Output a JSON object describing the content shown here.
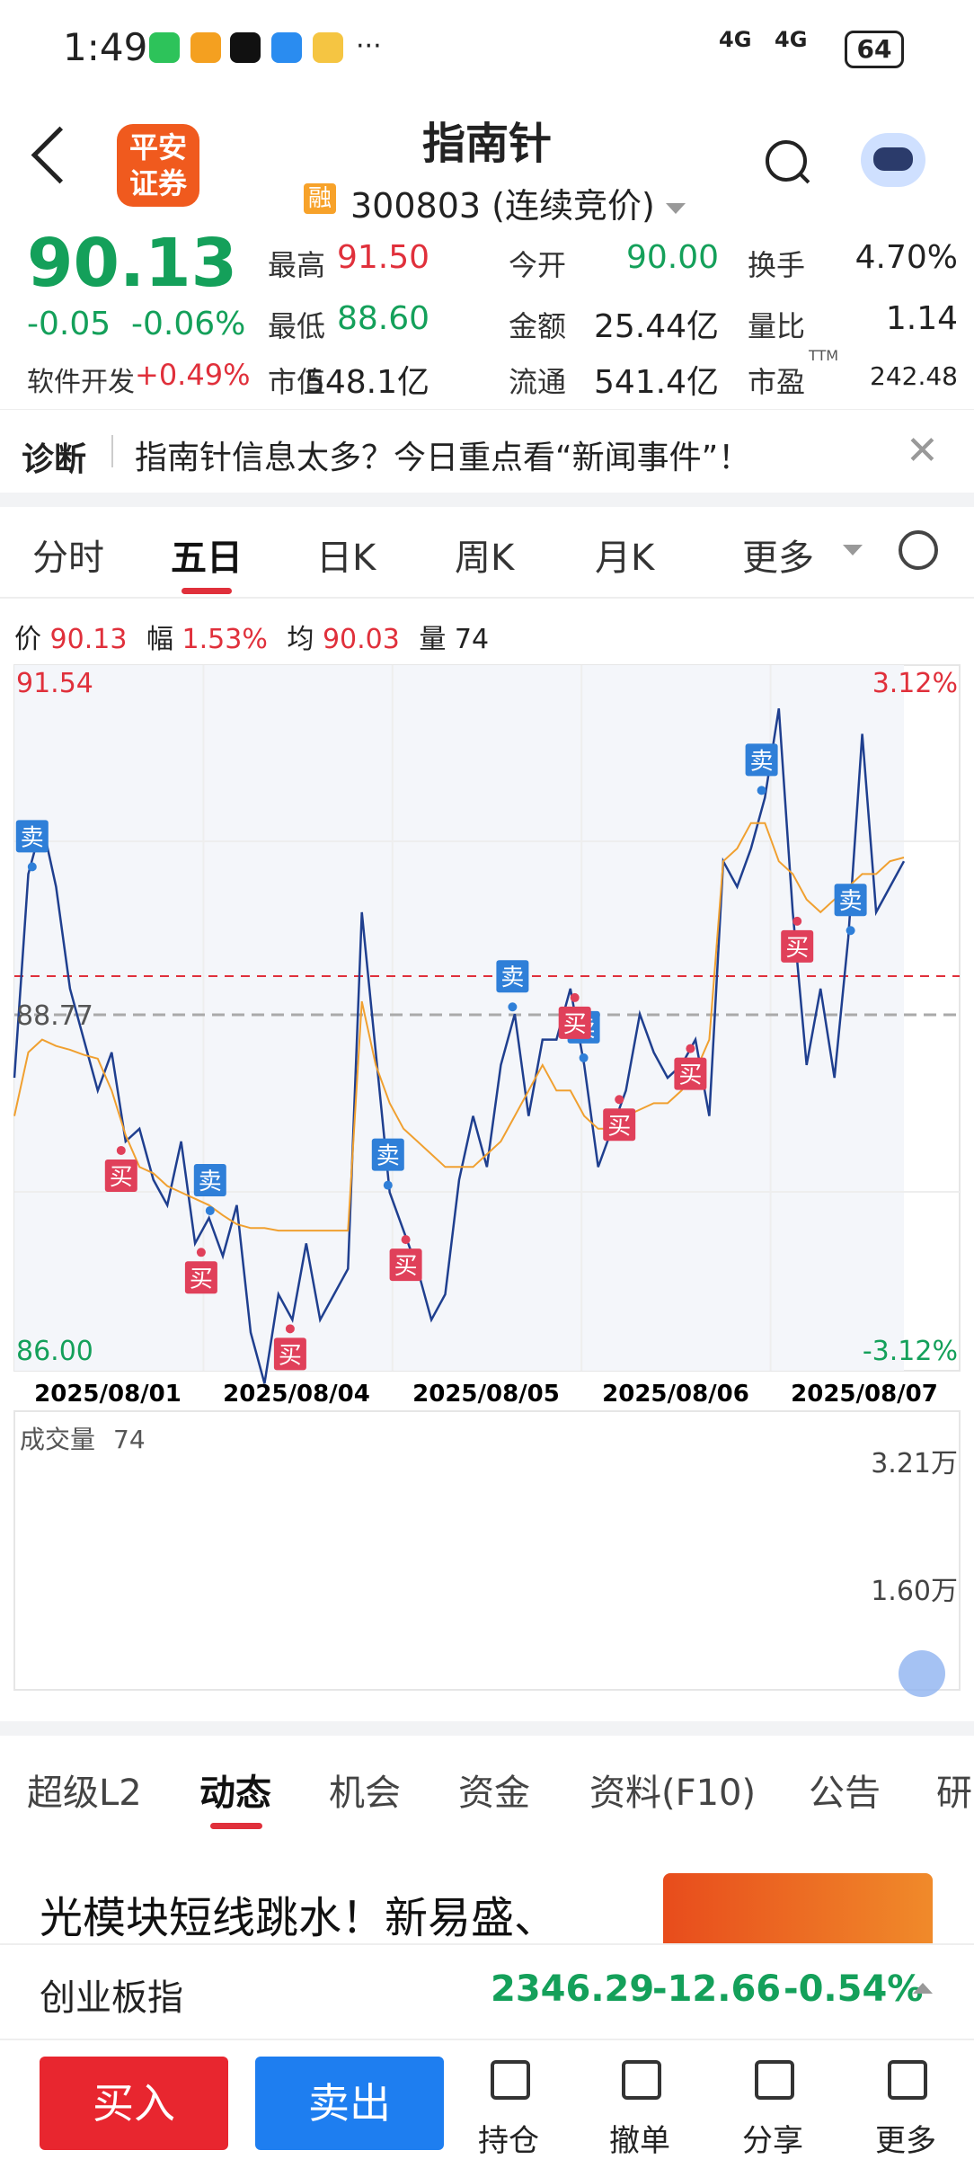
{
  "status_bar": {
    "time": "1:49",
    "signal1": "4G",
    "signal2": "4G",
    "battery": "64",
    "more": "···"
  },
  "header": {
    "back_icon": "chevron-left-icon",
    "broker_logo": "平安\n证券",
    "title": "指南针",
    "margin_badge": "融",
    "code_line": "300803 (连续竞价)",
    "search_icon": "search-icon",
    "assistant_icon": "robot-icon"
  },
  "quote": {
    "price": "90.13",
    "change": "-0.05",
    "change_pct": "-0.06%",
    "sector_label": "软件开发",
    "sector_change": "+0.49%",
    "fields": [
      {
        "label": "最高",
        "value": "91.50",
        "color": "red"
      },
      {
        "label": "今开",
        "value": "90.00",
        "color": "green"
      },
      {
        "label": "换手",
        "value": "4.70%",
        "color": "dark"
      },
      {
        "label": "最低",
        "value": "88.60",
        "color": "green"
      },
      {
        "label": "金额",
        "value": "25.44亿",
        "color": "dark"
      },
      {
        "label": "量比",
        "value": "1.14",
        "color": "dark"
      },
      {
        "label": "市值",
        "value": "548.1亿",
        "color": "dark"
      },
      {
        "label": "流通",
        "value": "541.4亿",
        "color": "dark"
      },
      {
        "label": "市盈",
        "value": "242.48",
        "color": "dark"
      }
    ],
    "pe_sup": "TTM"
  },
  "diagnosis": {
    "label": "诊断",
    "text": "指南针信息太多？今日重点看“新闻事件”！",
    "close_icon": "close-icon"
  },
  "chart_tabs": {
    "items": [
      "分时",
      "五日",
      "日K",
      "周K",
      "月K",
      "更多"
    ],
    "active": "五日",
    "settings_icon": "gear-icon"
  },
  "info_line": {
    "price_label": "价",
    "price": "90.13",
    "amp_label": "幅",
    "amp": "1.53%",
    "avg_label": "均",
    "avg": "90.03",
    "vol_label": "量",
    "vol": "74"
  },
  "chart_data": {
    "type": "line",
    "title": "",
    "y_left_top": "91.54",
    "y_left_bottom": "86.00",
    "y_left_mid": "88.77",
    "y_right_top": "3.12%",
    "y_right_bottom": "-3.12%",
    "ylim": [
      86.0,
      91.54
    ],
    "prev_close": 88.77,
    "x_labels": [
      "2025/08/01",
      "2025/08/04",
      "2025/08/05",
      "2025/08/06",
      "2025/08/07"
    ],
    "series": [
      {
        "values": [
          88.3,
          89.9,
          90.3,
          89.8,
          89.0,
          88.6,
          88.2,
          88.5,
          87.8,
          87.9,
          87.5,
          87.3,
          87.8,
          87.0,
          87.2,
          86.9,
          87.3,
          86.3,
          85.9,
          86.6,
          86.4,
          87.0,
          86.4,
          86.6,
          86.8,
          89.6,
          88.5,
          87.4,
          87.1,
          86.8,
          86.4,
          86.6,
          87.5,
          88.0,
          87.6,
          88.4,
          88.8,
          88.0,
          88.6,
          88.6,
          89.0,
          88.4,
          87.6,
          87.9,
          88.2,
          88.8,
          88.5,
          88.3,
          88.4,
          88.6,
          88.0,
          90.0,
          89.8,
          90.1,
          90.5,
          91.2,
          89.6,
          88.4,
          89.0,
          88.3,
          89.4,
          91.0,
          89.6,
          89.8,
          90.0
        ]
      },
      {
        "values": [
          88.0,
          88.5,
          88.6,
          88.55,
          88.52,
          88.48,
          88.45,
          88.2,
          87.85,
          87.6,
          87.55,
          87.45,
          87.4,
          87.35,
          87.3,
          87.22,
          87.15,
          87.12,
          87.12,
          87.1,
          87.1,
          87.1,
          87.1,
          87.1,
          87.1,
          88.9,
          88.4,
          88.1,
          87.9,
          87.8,
          87.7,
          87.6,
          87.6,
          87.6,
          87.7,
          87.8,
          88.0,
          88.2,
          88.4,
          88.2,
          88.2,
          88.0,
          87.9,
          87.9,
          88.0,
          88.05,
          88.1,
          88.1,
          88.2,
          88.35,
          88.6,
          90.0,
          90.1,
          90.3,
          90.3,
          90.0,
          89.9,
          89.7,
          89.6,
          89.7,
          89.8,
          89.9,
          89.9,
          90.0,
          90.03
        ]
      }
    ],
    "markers": [
      {
        "type": "卖",
        "pos": 0.02
      },
      {
        "type": "买",
        "pos": 0.12
      },
      {
        "type": "卖",
        "pos": 0.22
      },
      {
        "type": "买",
        "pos": 0.21
      },
      {
        "type": "买",
        "pos": 0.31
      },
      {
        "type": "卖",
        "pos": 0.42
      },
      {
        "type": "买",
        "pos": 0.44
      },
      {
        "type": "卖",
        "pos": 0.56
      },
      {
        "type": "卖",
        "pos": 0.64
      },
      {
        "type": "买",
        "pos": 0.63
      },
      {
        "type": "买",
        "pos": 0.68
      },
      {
        "type": "买",
        "pos": 0.76
      },
      {
        "type": "卖",
        "pos": 0.84
      },
      {
        "type": "买",
        "pos": 0.88
      },
      {
        "type": "卖",
        "pos": 0.94
      }
    ]
  },
  "volume": {
    "label": "成交量",
    "value": "74",
    "max_label": "3.21万",
    "mid_label": "1.60万",
    "expand_icon": "expand-icon"
  },
  "bottom_tabs": {
    "items": [
      "超级L2",
      "动态",
      "机会",
      "资金",
      "资料(F10)",
      "公告",
      "研"
    ],
    "active": "动态"
  },
  "news": {
    "headline": "光模块短线跳水！新易盛、"
  },
  "index_bar": {
    "name": "创业板指",
    "value": "2346.29",
    "change": "-12.66",
    "change_pct": "-0.54%"
  },
  "actions": {
    "buy": "买入",
    "sell": "卖出",
    "hold": "持仓",
    "cancel": "撤单",
    "share": "分享",
    "more": "更多"
  },
  "colors": {
    "up": "#e0303b",
    "down": "#14a05a",
    "avg_line": "#f0a030",
    "price_line": "#1f3f8f",
    "sell_marker": "#2f7fd8",
    "buy_marker": "#e0405a"
  }
}
